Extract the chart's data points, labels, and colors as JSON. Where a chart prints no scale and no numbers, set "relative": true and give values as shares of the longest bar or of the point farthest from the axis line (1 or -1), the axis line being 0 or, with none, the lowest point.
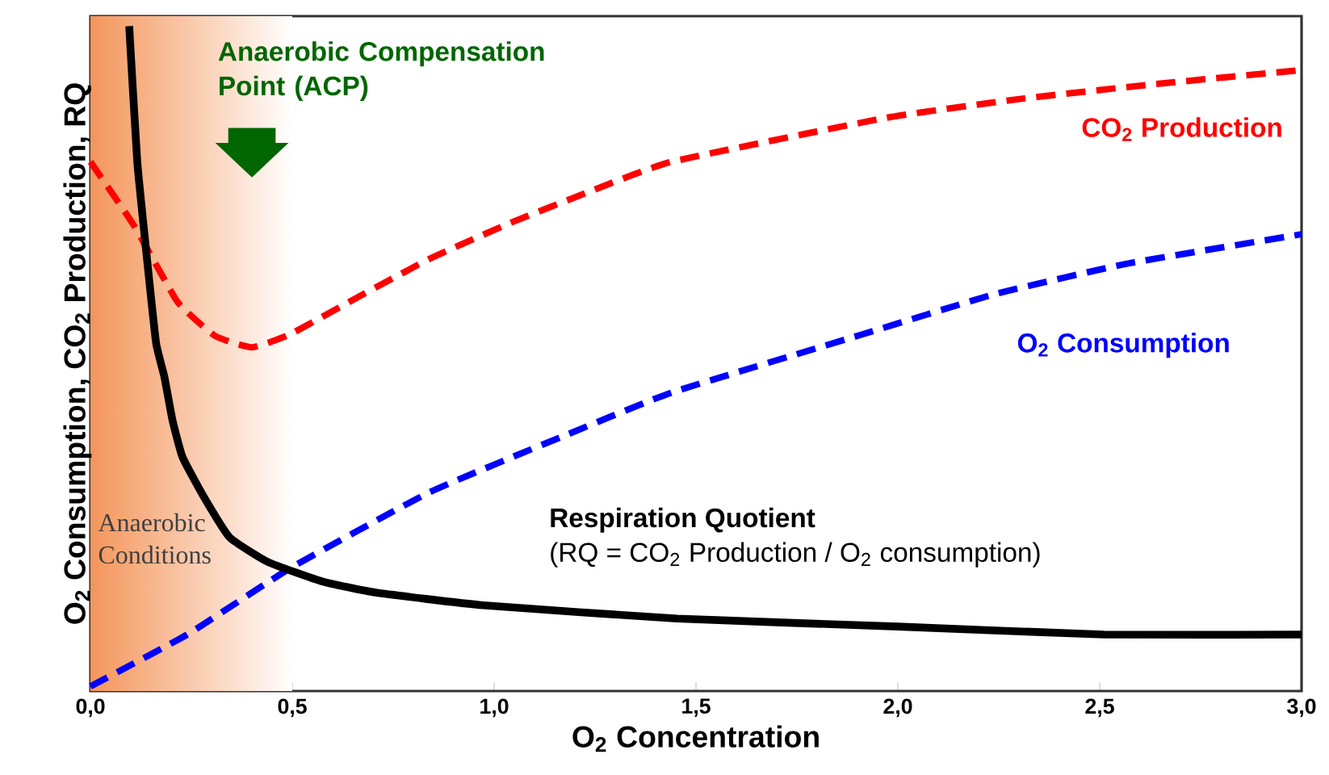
{
  "chart_data": {
    "type": "line",
    "relative": true,
    "xlabel": "O$_{2}$ Concentration",
    "ylabel": "O$_{2}$ Consumption, CO$_{2}$ Production, RQ",
    "xlim": [
      0,
      3
    ],
    "xticks": [
      {
        "value": 0,
        "label": "0,0"
      },
      {
        "value": 0.5,
        "label": "0,5"
      },
      {
        "value": 1,
        "label": "1,0"
      },
      {
        "value": 1.5,
        "label": "1,5"
      },
      {
        "value": 2,
        "label": "2,0"
      },
      {
        "value": 2.5,
        "label": "2,5"
      },
      {
        "value": 3,
        "label": "3,0"
      }
    ],
    "tick_labels": "x",
    "series": [
      {
        "name": "CO$_{2}$ Production",
        "color": "#ff0000",
        "line_style": "dashed",
        "x": [
          0,
          0.109,
          0.216,
          0.309,
          0.4,
          0.493,
          0.64,
          0.84,
          1.04,
          1.24,
          1.44,
          1.97,
          2.31,
          2.64,
          3.0
        ],
        "values": [
          0.796,
          0.699,
          0.585,
          0.534,
          0.517,
          0.536,
          0.585,
          0.65,
          0.704,
          0.752,
          0.796,
          0.862,
          0.891,
          0.913,
          0.934
        ]
      },
      {
        "name": "O$_{2}$ Consumption",
        "color": "#0000ff",
        "line_style": "dashed",
        "x": [
          0,
          0.24,
          0.493,
          0.84,
          1.17,
          1.44,
          1.91,
          2.24,
          2.57,
          3.0
        ],
        "values": [
          0.007,
          0.085,
          0.184,
          0.299,
          0.383,
          0.449,
          0.536,
          0.597,
          0.643,
          0.687
        ]
      },
      {
        "name": "Respiration Quotient",
        "color": "#000000",
        "line_style": "solid",
        "x": [
          0.096,
          0.116,
          0.143,
          0.163,
          0.183,
          0.203,
          0.228,
          0.279,
          0.345,
          0.44,
          0.573,
          0.707,
          0.973,
          1.453,
          2.0,
          2.51,
          3.0
        ],
        "values": [
          1.0,
          0.796,
          0.633,
          0.522,
          0.473,
          0.408,
          0.352,
          0.294,
          0.231,
          0.194,
          0.165,
          0.148,
          0.129,
          0.109,
          0.097,
          0.085,
          0.085
        ]
      }
    ],
    "bands": [
      {
        "axis": "x",
        "from": 0,
        "to": 0.5,
        "label": "Anaerobic Conditions",
        "color": "#f4955a"
      }
    ],
    "annotations": [
      "Anaerobic Compensation Point (ACP)",
      "(RQ = CO$_{2}$ Production / O$_{2}$ consumption)"
    ]
  }
}
